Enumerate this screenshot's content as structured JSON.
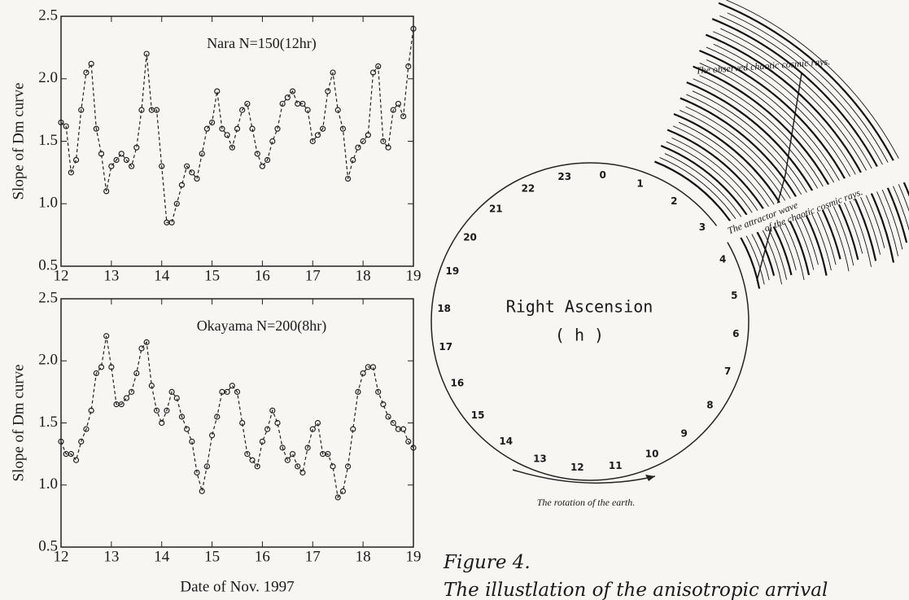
{
  "chart_data": [
    {
      "type": "line",
      "annotation": "Nara N=150(12hr)",
      "y_label": "Slope of Dm curve",
      "x": [
        12.0,
        12.1,
        12.2,
        12.3,
        12.4,
        12.5,
        12.6,
        12.7,
        12.8,
        12.9,
        13.0,
        13.1,
        13.2,
        13.3,
        13.4,
        13.5,
        13.6,
        13.7,
        13.8,
        13.9,
        14.0,
        14.1,
        14.2,
        14.3,
        14.4,
        14.5,
        14.6,
        14.7,
        14.8,
        14.9,
        15.0,
        15.1,
        15.2,
        15.3,
        15.4,
        15.5,
        15.6,
        15.7,
        15.8,
        15.9,
        16.0,
        16.1,
        16.2,
        16.3,
        16.4,
        16.5,
        16.6,
        16.7,
        16.8,
        16.9,
        17.0,
        17.1,
        17.2,
        17.3,
        17.4,
        17.5,
        17.6,
        17.7,
        17.8,
        17.9,
        18.0,
        18.1,
        18.2,
        18.3,
        18.4,
        18.5,
        18.6,
        18.7,
        18.8,
        18.9,
        19.0
      ],
      "values": [
        1.65,
        1.62,
        1.25,
        1.35,
        1.75,
        2.05,
        2.12,
        1.6,
        1.4,
        1.1,
        1.3,
        1.35,
        1.4,
        1.35,
        1.3,
        1.45,
        1.75,
        2.2,
        1.75,
        1.75,
        1.3,
        0.85,
        0.85,
        1.0,
        1.15,
        1.3,
        1.25,
        1.2,
        1.4,
        1.6,
        1.65,
        1.9,
        1.6,
        1.55,
        1.45,
        1.6,
        1.75,
        1.8,
        1.6,
        1.4,
        1.3,
        1.35,
        1.5,
        1.6,
        1.8,
        1.85,
        1.9,
        1.8,
        1.8,
        1.75,
        1.5,
        1.55,
        1.6,
        1.9,
        2.05,
        1.75,
        1.6,
        1.2,
        1.35,
        1.45,
        1.5,
        1.55,
        2.05,
        2.1,
        1.5,
        1.45,
        1.75,
        1.8,
        1.7,
        2.1,
        2.4
      ],
      "color": "#222222",
      "marker": "open-circle",
      "line_style": "dashed",
      "xlim": [
        12,
        19
      ],
      "xticks": [
        12,
        13,
        14,
        15,
        16,
        17,
        18,
        19
      ],
      "ylim": [
        0.5,
        2.5
      ],
      "yticks": [
        0.5,
        {
          "value": 1.0,
          "label": "1.0"
        },
        1.5,
        {
          "value": 2.0,
          "label": "2.0"
        },
        2.5
      ]
    },
    {
      "type": "line",
      "annotation": "Okayama N=200(8hr)",
      "y_label": "Slope of Dm curve",
      "x_label": "Date of Nov. 1997",
      "x": [
        12.0,
        12.1,
        12.2,
        12.3,
        12.4,
        12.5,
        12.6,
        12.7,
        12.8,
        12.9,
        13.0,
        13.1,
        13.2,
        13.3,
        13.4,
        13.5,
        13.6,
        13.7,
        13.8,
        13.9,
        14.0,
        14.1,
        14.2,
        14.3,
        14.4,
        14.5,
        14.6,
        14.7,
        14.8,
        14.9,
        15.0,
        15.1,
        15.2,
        15.3,
        15.4,
        15.5,
        15.6,
        15.7,
        15.8,
        15.9,
        16.0,
        16.1,
        16.2,
        16.3,
        16.4,
        16.5,
        16.6,
        16.7,
        16.8,
        16.9,
        17.0,
        17.1,
        17.2,
        17.3,
        17.4,
        17.5,
        17.6,
        17.7,
        17.8,
        17.9,
        18.0,
        18.1,
        18.2,
        18.3,
        18.4,
        18.5,
        18.6,
        18.7,
        18.8,
        18.9,
        19.0
      ],
      "values": [
        1.35,
        1.25,
        1.25,
        1.2,
        1.35,
        1.45,
        1.6,
        1.9,
        1.95,
        2.2,
        1.95,
        1.65,
        1.65,
        1.7,
        1.75,
        1.9,
        2.1,
        2.15,
        1.8,
        1.6,
        1.5,
        1.6,
        1.75,
        1.7,
        1.55,
        1.45,
        1.35,
        1.1,
        0.95,
        1.15,
        1.4,
        1.55,
        1.75,
        1.75,
        1.8,
        1.75,
        1.5,
        1.25,
        1.2,
        1.15,
        1.35,
        1.45,
        1.6,
        1.5,
        1.3,
        1.2,
        1.25,
        1.15,
        1.1,
        1.3,
        1.45,
        1.5,
        1.25,
        1.25,
        1.15,
        0.9,
        0.95,
        1.15,
        1.45,
        1.75,
        1.9,
        1.95,
        1.95,
        1.75,
        1.65,
        1.55,
        1.5,
        1.45,
        1.45,
        1.35,
        1.3
      ],
      "color": "#222222",
      "marker": "open-circle",
      "line_style": "dashed",
      "xlim": [
        12,
        19
      ],
      "xticks": [
        12,
        13,
        14,
        15,
        16,
        17,
        18,
        19
      ],
      "ylim": [
        0.5,
        2.5
      ],
      "yticks": [
        0.5,
        {
          "value": 1.0,
          "label": "1.0"
        },
        1.5,
        {
          "value": 2.0,
          "label": "2.0"
        },
        2.5
      ]
    }
  ],
  "diagram": {
    "hours": [
      "0",
      "1",
      "2",
      "3",
      "4",
      "5",
      "6",
      "7",
      "8",
      "9",
      "10",
      "11",
      "12",
      "13",
      "14",
      "15",
      "16",
      "17",
      "18",
      "19",
      "20",
      "21",
      "22",
      "23"
    ],
    "center_label": "Right Ascension",
    "unit_label": "( h )",
    "rotation_label": "The rotation of the earth.",
    "observed_label": "The observed chaotic cosmic rays.",
    "attractor_label_1": "The attractor wave",
    "attractor_label_2": "of the chaotic cosmic rays."
  },
  "caption": {
    "figure": "Figure 4.",
    "text": "The illustlation of the anisotropic arrival"
  }
}
